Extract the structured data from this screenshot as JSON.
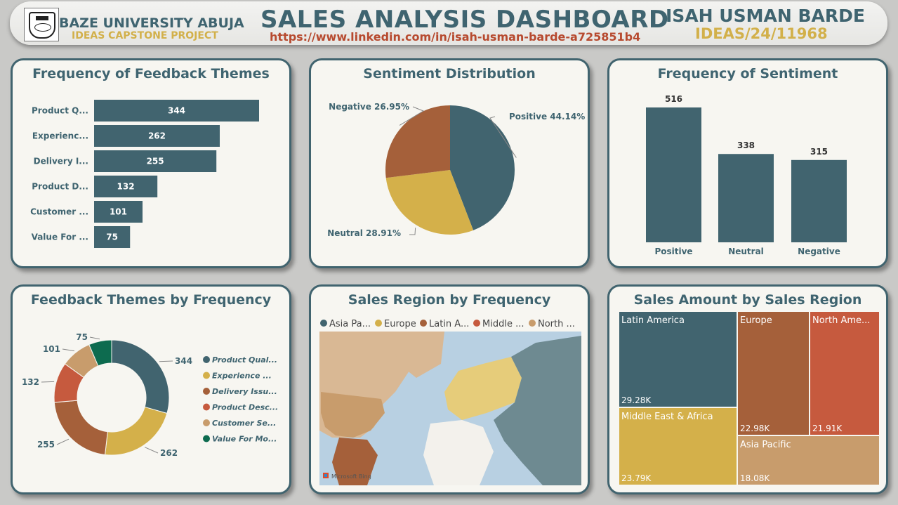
{
  "header": {
    "university": "BAZE UNIVERSITY ABUJA",
    "project": "IDEAS CAPSTONE PROJECT",
    "title": "SALES ANALYSIS DASHBOARD",
    "link": "https://www.linkedin.com/in/isah-usman-barde-a725851b4",
    "author": "ISAH USMAN BARDE",
    "author_id": "IDEAS/24/11968"
  },
  "colors": {
    "teal": "#41646f",
    "gold": "#d4b04a",
    "brown": "#a5603a",
    "orange": "#c65a3e",
    "tan": "#c89c6c",
    "green": "#0d6b4f"
  },
  "chart_data": [
    {
      "id": "feedback-bar",
      "type": "bar",
      "orientation": "horizontal",
      "title": "Frequency of Feedback Themes",
      "categories": [
        "Product Q...",
        "Experienc...",
        "Delivery I...",
        "Product D...",
        "Customer ...",
        "Value For ..."
      ],
      "values": [
        344,
        262,
        255,
        132,
        101,
        75
      ],
      "xlim": [
        0,
        344
      ]
    },
    {
      "id": "sentiment-pie",
      "type": "pie",
      "title": "Sentiment Distribution",
      "labels": [
        "Positive 44.14%",
        "Neutral 28.91%",
        "Negative 26.95%"
      ],
      "values": [
        44.14,
        28.91,
        26.95
      ],
      "colors": [
        "#41646f",
        "#d4b04a",
        "#a5603a"
      ]
    },
    {
      "id": "sentiment-bar",
      "type": "bar",
      "title": "Frequency of Sentiment",
      "categories": [
        "Positive",
        "Neutral",
        "Negative"
      ],
      "values": [
        516,
        338,
        315
      ],
      "ylim": [
        0,
        516
      ]
    },
    {
      "id": "themes-donut",
      "type": "pie",
      "style": "donut",
      "title": "Feedback Themes by Frequency",
      "legend": [
        "Product Qual...",
        "Experience ...",
        "Delivery Issu...",
        "Product Desc...",
        "Customer Se...",
        "Value For Mo..."
      ],
      "values": [
        344,
        262,
        255,
        132,
        101,
        75
      ],
      "colors": [
        "#41646f",
        "#d4b04a",
        "#a5603a",
        "#c65a3e",
        "#c89c6c",
        "#0d6b4f"
      ],
      "legend_position": "right"
    },
    {
      "id": "region-map",
      "type": "map",
      "title": "Sales Region by Frequency",
      "legend": [
        "Asia Pa...",
        "Europe",
        "Latin A...",
        "Middle ...",
        "North ..."
      ],
      "colors": [
        "#41646f",
        "#d4b04a",
        "#a5603a",
        "#c65a3e",
        "#c89c6c"
      ],
      "attribution": "Microsoft Bing"
    },
    {
      "id": "region-treemap",
      "type": "treemap",
      "title": "Sales Amount by Sales Region",
      "labels": [
        "Latin America",
        "Middle East & Africa",
        "Europe",
        "North Ame...",
        "Asia Pacific"
      ],
      "value_labels": [
        "29.28K",
        "23.79K",
        "22.98K",
        "21.91K",
        "18.08K"
      ],
      "values": [
        29.28,
        23.79,
        22.98,
        21.91,
        18.08
      ],
      "colors": [
        "#41646f",
        "#d4b04a",
        "#a5603a",
        "#c65a3e",
        "#c89c6c"
      ]
    }
  ]
}
